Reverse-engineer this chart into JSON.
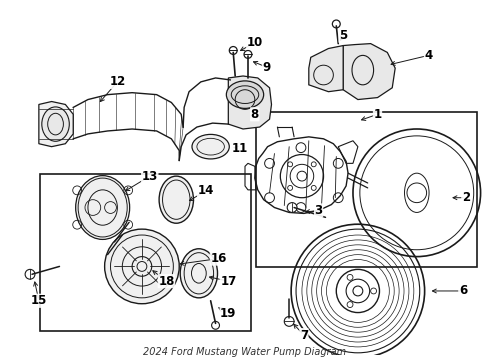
{
  "title": "2024 Ford Mustang Water Pump Diagram",
  "bg_color": "#ffffff",
  "line_color": "#1a1a1a",
  "label_color": "#000000",
  "label_fontsize": 8.5,
  "fig_width": 4.9,
  "fig_height": 3.6,
  "dpi": 100
}
